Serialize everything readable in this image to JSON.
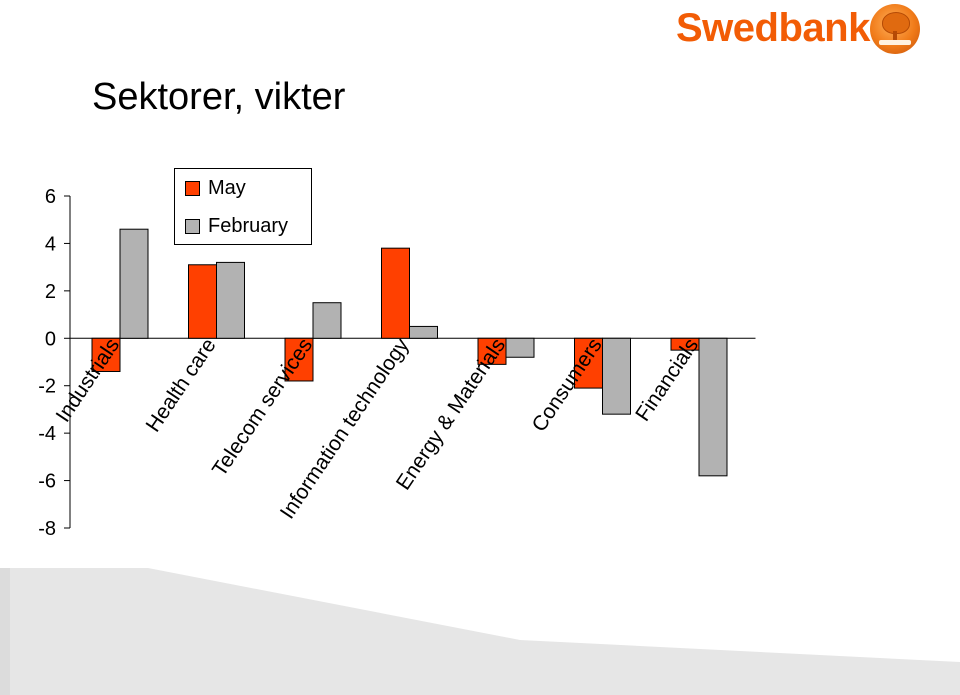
{
  "slide": {
    "title": "Sektorer, vikter"
  },
  "brand": {
    "name": "Swedbank",
    "color": "#f25c05",
    "seal_icon": "oak-tree-seal-icon"
  },
  "chart_data": {
    "type": "bar",
    "title": "",
    "xlabel": "",
    "ylabel": "",
    "categories": [
      "Industrials",
      "Health care",
      "Telecom services",
      "Information technology",
      "Energy & Materials",
      "Consumers",
      "Financials"
    ],
    "series": [
      {
        "name": "May",
        "color": "#ff4000",
        "values": [
          -1.4,
          3.1,
          -1.8,
          3.8,
          -1.1,
          -2.1,
          -0.5
        ]
      },
      {
        "name": "February",
        "color": "#b2b2b2",
        "values": [
          4.6,
          3.2,
          1.5,
          0.5,
          -0.8,
          -3.2,
          -5.8
        ]
      }
    ],
    "ylim": [
      -8,
      6
    ],
    "yticks": [
      -8,
      -6,
      -4,
      -2,
      0,
      2,
      4,
      6
    ],
    "grid": false,
    "legend_position": "top-left"
  }
}
